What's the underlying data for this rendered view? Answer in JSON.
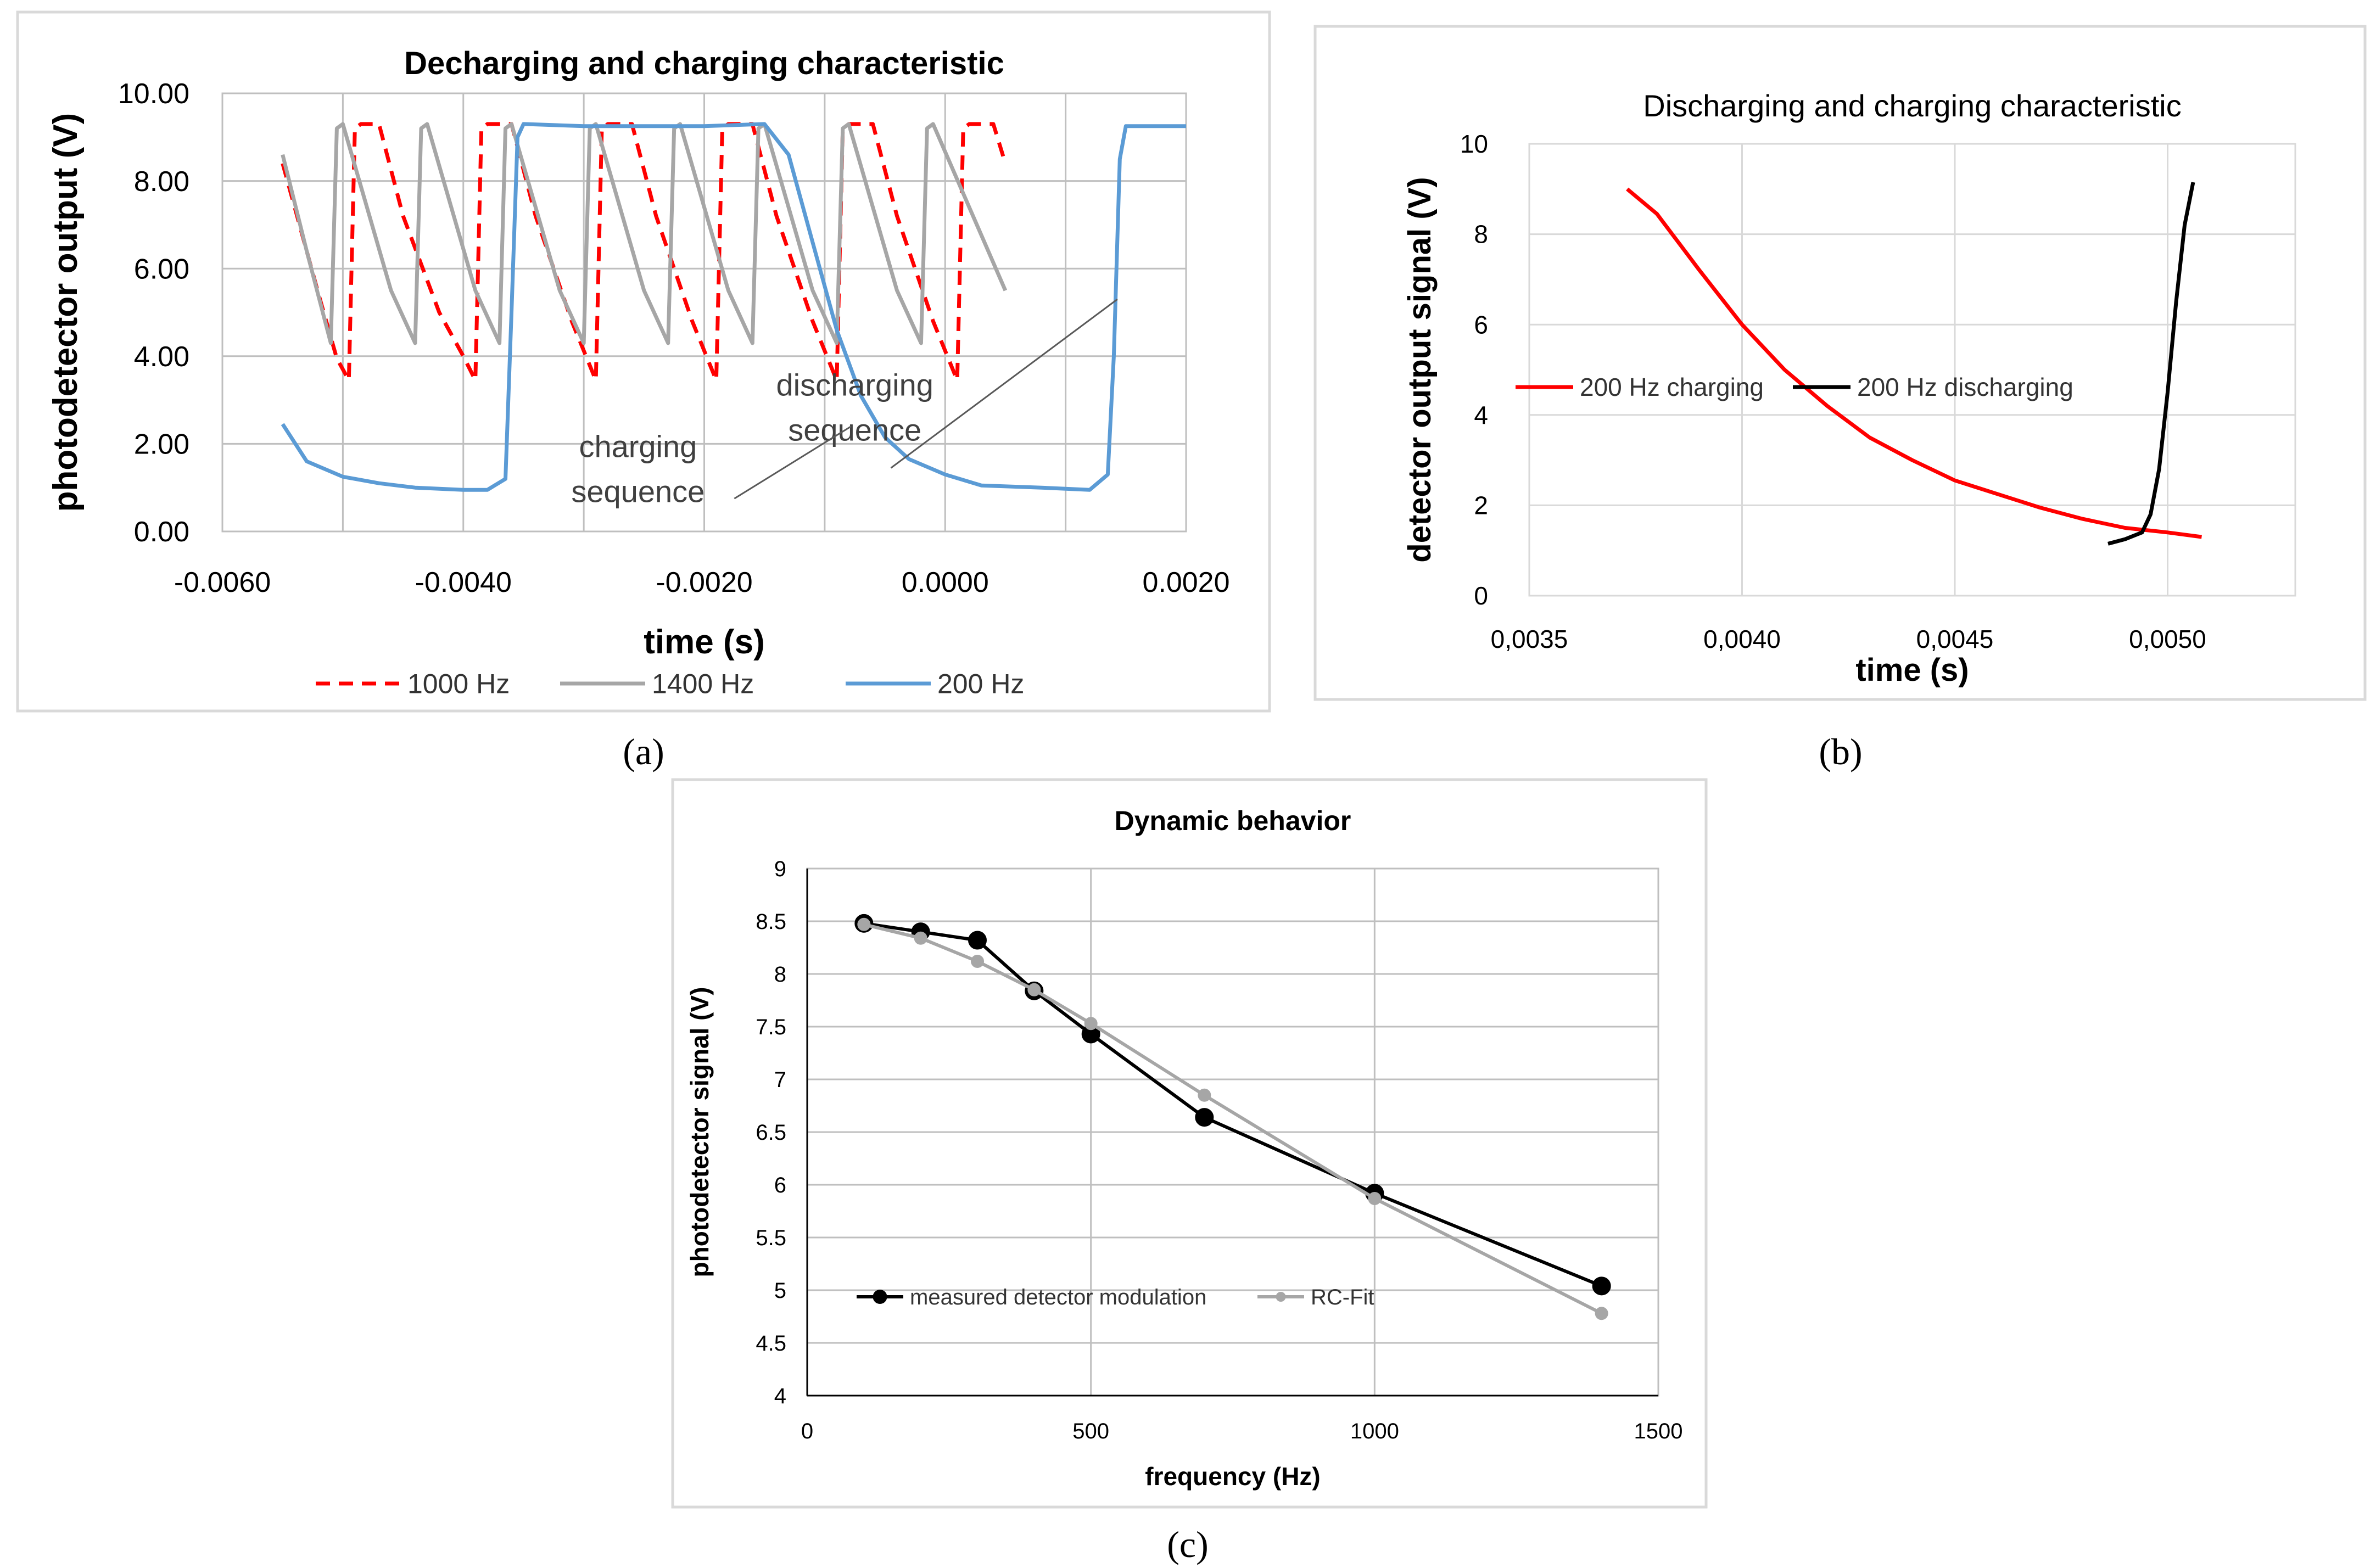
{
  "figure": {
    "caption_a": "(a)",
    "caption_b": "(b)",
    "caption_c": "(c)"
  },
  "chart_data": [
    {
      "id": "a",
      "type": "line",
      "title": "Decharging and charging characteristic",
      "xlabel": "time (s)",
      "ylabel": "photodetector output (V)",
      "xlim": [
        -0.006,
        0.002
      ],
      "ylim": [
        0,
        10
      ],
      "xticks": [
        -0.006,
        -0.004,
        -0.002,
        0.0,
        0.002
      ],
      "xtick_labels": [
        "-0.0060",
        "-0.0040",
        "-0.0020",
        "0.0000",
        "0.0020"
      ],
      "yticks": [
        0,
        2,
        4,
        6,
        8,
        10
      ],
      "ytick_labels": [
        "0.00",
        "2.00",
        "4.00",
        "6.00",
        "8.00",
        "10.00"
      ],
      "grid": true,
      "legend_position": "bottom",
      "annotations": [
        {
          "lines": [
            "discharging",
            "sequence"
          ],
          "x": -0.00075,
          "y": 3.1,
          "arrow_to_x": 0.00143,
          "arrow_to_y": 5.3,
          "from_x": -0.00045,
          "from_y": 1.45
        },
        {
          "lines": [
            "charging",
            "sequence"
          ],
          "x": -0.00255,
          "y": 1.7,
          "arrow_to_x": -0.00078,
          "arrow_to_y": 2.4,
          "from_x": -0.00175,
          "from_y": 0.75
        }
      ],
      "series": [
        {
          "name": "1000 Hz",
          "color": "#ff0000",
          "dashed": true,
          "points": [
            [
              -0.0055,
              8.4
            ],
            [
              -0.0052,
              5.4
            ],
            [
              -0.00505,
              3.95
            ],
            [
              -0.00495,
              3.45
            ],
            [
              -0.0049,
              9.2
            ],
            [
              -0.00485,
              9.3
            ],
            [
              -0.0047,
              9.3
            ],
            [
              -0.0045,
              7.2
            ],
            [
              -0.0042,
              5.0
            ],
            [
              -0.004,
              4.0
            ],
            [
              -0.0039,
              3.45
            ],
            [
              -0.00385,
              9.2
            ],
            [
              -0.0038,
              9.3
            ],
            [
              -0.0036,
              9.3
            ],
            [
              -0.0034,
              7.2
            ],
            [
              -0.0031,
              4.8
            ],
            [
              -0.0029,
              3.45
            ],
            [
              -0.00285,
              9.2
            ],
            [
              -0.0028,
              9.3
            ],
            [
              -0.0026,
              9.3
            ],
            [
              -0.0024,
              7.2
            ],
            [
              -0.0021,
              4.8
            ],
            [
              -0.0019,
              3.45
            ],
            [
              -0.00185,
              9.2
            ],
            [
              -0.0018,
              9.3
            ],
            [
              -0.0016,
              9.3
            ],
            [
              -0.0014,
              7.2
            ],
            [
              -0.0011,
              4.8
            ],
            [
              -0.0009,
              3.45
            ],
            [
              -0.00085,
              9.2
            ],
            [
              -0.0008,
              9.3
            ],
            [
              -0.0006,
              9.3
            ],
            [
              -0.0004,
              7.2
            ],
            [
              -0.0001,
              4.8
            ],
            [
              0.0001,
              3.45
            ],
            [
              0.00015,
              9.2
            ],
            [
              0.0002,
              9.3
            ],
            [
              0.0004,
              9.3
            ],
            [
              0.0005,
              8.4
            ]
          ]
        },
        {
          "name": "1400 Hz",
          "color": "#a6a6a6",
          "dashed": false,
          "points": [
            [
              -0.0055,
              8.6
            ],
            [
              -0.0053,
              6.4
            ],
            [
              -0.0051,
              4.3
            ],
            [
              -0.00505,
              9.2
            ],
            [
              -0.005,
              9.3
            ],
            [
              -0.0046,
              5.5
            ],
            [
              -0.0044,
              4.3
            ],
            [
              -0.00435,
              9.2
            ],
            [
              -0.0043,
              9.3
            ],
            [
              -0.0039,
              5.5
            ],
            [
              -0.0037,
              4.3
            ],
            [
              -0.00365,
              9.2
            ],
            [
              -0.0036,
              9.3
            ],
            [
              -0.0032,
              5.5
            ],
            [
              -0.003,
              4.3
            ],
            [
              -0.00295,
              9.2
            ],
            [
              -0.0029,
              9.3
            ],
            [
              -0.0025,
              5.5
            ],
            [
              -0.0023,
              4.3
            ],
            [
              -0.00225,
              9.2
            ],
            [
              -0.0022,
              9.3
            ],
            [
              -0.0018,
              5.5
            ],
            [
              -0.0016,
              4.3
            ],
            [
              -0.00155,
              9.2
            ],
            [
              -0.0015,
              9.3
            ],
            [
              -0.0011,
              5.5
            ],
            [
              -0.0009,
              4.3
            ],
            [
              -0.00085,
              9.2
            ],
            [
              -0.0008,
              9.3
            ],
            [
              -0.0004,
              5.5
            ],
            [
              -0.0002,
              4.3
            ],
            [
              -0.00015,
              9.2
            ],
            [
              -0.0001,
              9.3
            ],
            [
              0.0005,
              5.5
            ]
          ]
        },
        {
          "name": "200 Hz",
          "color": "#5b9bd5",
          "dashed": false,
          "points": [
            [
              -0.0055,
              2.45
            ],
            [
              -0.0053,
              1.6
            ],
            [
              -0.005,
              1.25
            ],
            [
              -0.0047,
              1.1
            ],
            [
              -0.0044,
              1.0
            ],
            [
              -0.004,
              0.95
            ],
            [
              -0.0038,
              0.95
            ],
            [
              -0.00365,
              1.2
            ],
            [
              -0.0036,
              5.0
            ],
            [
              -0.00355,
              9.0
            ],
            [
              -0.0035,
              9.3
            ],
            [
              -0.003,
              9.25
            ],
            [
              -0.0025,
              9.25
            ],
            [
              -0.002,
              9.25
            ],
            [
              -0.0015,
              9.3
            ],
            [
              -0.0013,
              8.6
            ],
            [
              -0.0011,
              6.6
            ],
            [
              -0.0009,
              4.6
            ],
            [
              -0.0007,
              3.1
            ],
            [
              -0.0005,
              2.15
            ],
            [
              -0.0003,
              1.65
            ],
            [
              0.0,
              1.3
            ],
            [
              0.0003,
              1.05
            ],
            [
              0.0008,
              1.0
            ],
            [
              0.0012,
              0.95
            ],
            [
              0.00135,
              1.3
            ],
            [
              0.0014,
              4.0
            ],
            [
              0.00145,
              8.5
            ],
            [
              0.0015,
              9.25
            ],
            [
              0.002,
              9.25
            ]
          ]
        }
      ]
    },
    {
      "id": "b",
      "type": "line",
      "title": "Discharging and charging characteristic",
      "xlabel": "time (s)",
      "ylabel": "detector output signal (V)",
      "xlim": [
        0.0035,
        0.0053
      ],
      "ylim": [
        0,
        10
      ],
      "xticks": [
        0.0035,
        0.004,
        0.0045,
        0.005
      ],
      "xtick_labels": [
        "0,0035",
        "0,0040",
        "0,0045",
        "0,0050"
      ],
      "yticks": [
        0,
        2,
        4,
        6,
        8,
        10
      ],
      "ytick_labels": [
        "0",
        "2",
        "4",
        "6",
        "8",
        "10"
      ],
      "grid": true,
      "legend_position": "middle",
      "series": [
        {
          "name": "200 Hz charging",
          "color": "#ff0000",
          "points": [
            [
              0.00373,
              9.0
            ],
            [
              0.0038,
              8.45
            ],
            [
              0.0039,
              7.2
            ],
            [
              0.004,
              6.0
            ],
            [
              0.0041,
              5.0
            ],
            [
              0.0042,
              4.2
            ],
            [
              0.0043,
              3.5
            ],
            [
              0.0044,
              3.0
            ],
            [
              0.0045,
              2.55
            ],
            [
              0.0046,
              2.25
            ],
            [
              0.0047,
              1.95
            ],
            [
              0.0048,
              1.7
            ],
            [
              0.0049,
              1.5
            ],
            [
              0.005,
              1.4
            ],
            [
              0.00508,
              1.3
            ]
          ]
        },
        {
          "name": "200 Hz discharging",
          "color": "#000000",
          "points": [
            [
              0.00486,
              1.15
            ],
            [
              0.0049,
              1.25
            ],
            [
              0.00494,
              1.4
            ],
            [
              0.00496,
              1.8
            ],
            [
              0.00498,
              2.8
            ],
            [
              0.005,
              4.5
            ],
            [
              0.00502,
              6.5
            ],
            [
              0.00504,
              8.2
            ],
            [
              0.00506,
              9.15
            ]
          ]
        }
      ]
    },
    {
      "id": "c",
      "type": "line",
      "title": "Dynamic behavior",
      "xlabel": "frequency (Hz)",
      "ylabel": "photodetector signal (V)",
      "xlim": [
        0,
        1500
      ],
      "ylim": [
        4,
        9
      ],
      "xticks": [
        0,
        500,
        1000,
        1500
      ],
      "xtick_labels": [
        "0",
        "500",
        "1000",
        "1500"
      ],
      "yticks": [
        4,
        4.5,
        5,
        5.5,
        6,
        6.5,
        7,
        7.5,
        8,
        8.5,
        9
      ],
      "ytick_labels": [
        "4",
        "4.5",
        "5",
        "5.5",
        "6",
        "6.5",
        "7",
        "7.5",
        "8",
        "8.5",
        "9"
      ],
      "grid": true,
      "legend_position": "bottom-left",
      "series": [
        {
          "name": "measured detector modulation",
          "color": "#000000",
          "x": [
            100,
            200,
            300,
            400,
            500,
            700,
            1000,
            1400
          ],
          "values": [
            8.48,
            8.4,
            8.32,
            7.84,
            7.43,
            6.64,
            5.92,
            5.04
          ]
        },
        {
          "name": "RC-Fit",
          "color": "#a6a6a6",
          "x": [
            100,
            200,
            300,
            400,
            500,
            700,
            1000,
            1400
          ],
          "values": [
            8.47,
            8.34,
            8.12,
            7.85,
            7.53,
            6.85,
            5.87,
            4.78
          ]
        }
      ]
    }
  ]
}
